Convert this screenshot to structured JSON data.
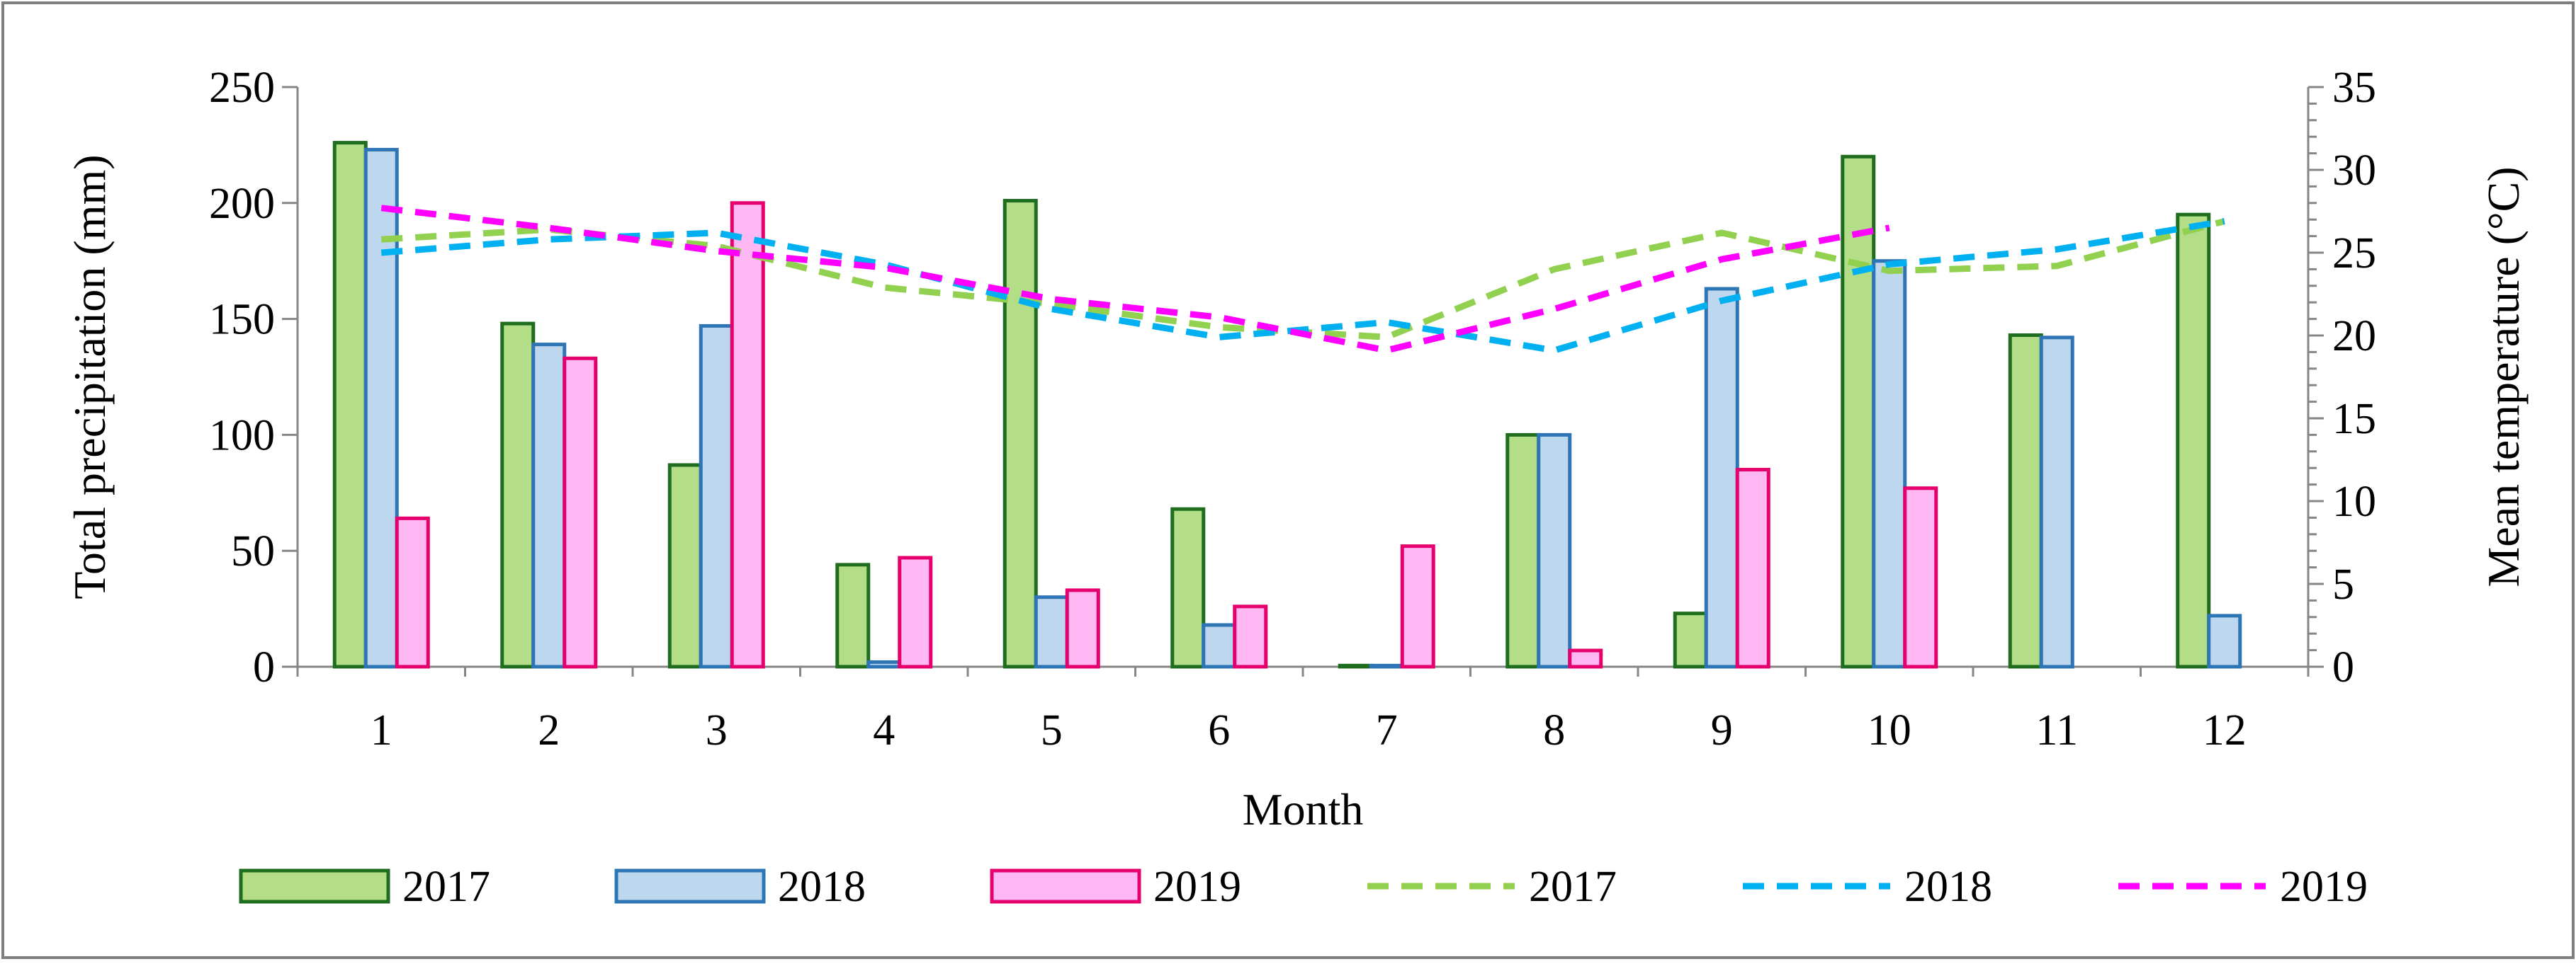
{
  "chart_data": {
    "type": "bar",
    "title": "",
    "xlabel": "Month",
    "ylabel": "Total precipitation (mm)",
    "y2label": "Mean temperature (°C)",
    "categories": [
      "1",
      "2",
      "3",
      "4",
      "5",
      "6",
      "7",
      "8",
      "9",
      "10",
      "11",
      "12"
    ],
    "ylim": [
      0,
      250
    ],
    "y2lim": [
      0,
      35
    ],
    "yticks": [
      "0",
      "50",
      "100",
      "150",
      "200",
      "250"
    ],
    "y2ticks": [
      "0",
      "5",
      "10",
      "15",
      "20",
      "25",
      "30",
      "35"
    ],
    "grid": false,
    "legend_position": "bottom",
    "bar_series": [
      {
        "name": "2017",
        "fill": "#b3dd86",
        "stroke": "#1f6e1f",
        "values": [
          226,
          148,
          87,
          44,
          201,
          68,
          0.5,
          100,
          23,
          220,
          143,
          195
        ]
      },
      {
        "name": "2018",
        "fill": "#bdd7ee",
        "stroke": "#2e75b6",
        "values": [
          223,
          139,
          147,
          2,
          30,
          18,
          0.5,
          100,
          163,
          175,
          142,
          22
        ]
      },
      {
        "name": "2019",
        "fill": "#ffb8f4",
        "stroke": "#e6006e",
        "values": [
          64,
          133,
          200,
          47,
          33,
          26,
          52,
          7,
          85,
          77,
          null,
          null
        ]
      }
    ],
    "line_series": [
      {
        "name": "2017",
        "color": "#92d050",
        "values": [
          25.8,
          26.4,
          25.4,
          22.9,
          21.9,
          20.5,
          19.9,
          24.0,
          26.2,
          23.9,
          24.2,
          26.9
        ]
      },
      {
        "name": "2018",
        "color": "#00b0f0",
        "values": [
          25.0,
          25.8,
          26.2,
          24.3,
          21.6,
          19.9,
          20.8,
          19.1,
          22.1,
          24.3,
          25.2,
          26.9
        ]
      },
      {
        "name": "2019",
        "color": "#ff00ff",
        "values": [
          27.7,
          26.5,
          25.1,
          24.1,
          22.2,
          21.1,
          19.1,
          21.6,
          24.6,
          26.5,
          null,
          null
        ]
      }
    ]
  }
}
